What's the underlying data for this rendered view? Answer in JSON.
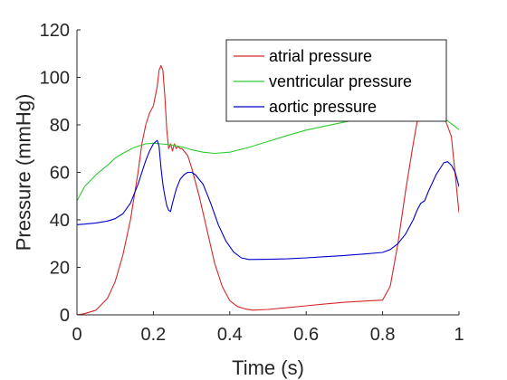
{
  "chart_data": {
    "type": "line",
    "xlabel": "Time (s)",
    "ylabel": "Pressure (mmHg)",
    "xlim": [
      0,
      1
    ],
    "ylim": [
      0,
      120
    ],
    "xticks": [
      0,
      0.2,
      0.4,
      0.6,
      0.8,
      1
    ],
    "xtick_labels": [
      "0",
      "0.2",
      "0.4",
      "0.6",
      "0.8",
      "1"
    ],
    "yticks": [
      0,
      20,
      40,
      60,
      80,
      100,
      120
    ],
    "ytick_labels": [
      "0",
      "20",
      "40",
      "60",
      "80",
      "100",
      "120"
    ],
    "grid": false,
    "legend_position": "top-right",
    "series": [
      {
        "name": "atrial pressure",
        "color": "#d62728",
        "x": [
          0,
          0.02,
          0.05,
          0.08,
          0.1,
          0.12,
          0.14,
          0.16,
          0.17,
          0.18,
          0.19,
          0.2,
          0.21,
          0.215,
          0.22,
          0.225,
          0.23,
          0.235,
          0.24,
          0.245,
          0.25,
          0.255,
          0.26,
          0.265,
          0.27,
          0.275,
          0.28,
          0.29,
          0.3,
          0.32,
          0.34,
          0.36,
          0.38,
          0.4,
          0.42,
          0.44,
          0.46,
          0.5,
          0.55,
          0.6,
          0.65,
          0.7,
          0.75,
          0.8,
          0.82,
          0.84,
          0.86,
          0.88,
          0.9,
          0.93,
          0.96,
          0.98,
          1.0
        ],
        "y": [
          0,
          0.5,
          2,
          7,
          14,
          25,
          40,
          60,
          72,
          80,
          85,
          88,
          96,
          103,
          105,
          103,
          92,
          78,
          70,
          72,
          69,
          72,
          70,
          71,
          70,
          70,
          69,
          67,
          62,
          50,
          36,
          22,
          12,
          6,
          3.5,
          2.5,
          2,
          2.3,
          3,
          3.8,
          4.6,
          5.3,
          5.8,
          6.2,
          12,
          30,
          52,
          72,
          90,
          86,
          84,
          75,
          43
        ]
      },
      {
        "name": "ventricular pressure",
        "color": "#2ecc2e",
        "x": [
          0,
          0.02,
          0.05,
          0.08,
          0.1,
          0.12,
          0.15,
          0.18,
          0.2,
          0.22,
          0.25,
          0.28,
          0.3,
          0.33,
          0.36,
          0.4,
          0.45,
          0.5,
          0.55,
          0.6,
          0.65,
          0.7,
          0.75,
          0.8,
          0.85,
          0.88,
          0.9,
          0.95,
          0.98,
          1.0
        ],
        "y": [
          48,
          54,
          59,
          63,
          66,
          68,
          70.5,
          72,
          72.3,
          72,
          71.5,
          70.5,
          69.5,
          68.5,
          68,
          68.5,
          70.5,
          73,
          75.5,
          77.8,
          79.5,
          81.2,
          82.8,
          84.3,
          85.5,
          86,
          85.8,
          84,
          80.5,
          78
        ]
      },
      {
        "name": "aortic pressure",
        "color": "#0000cc",
        "x": [
          0,
          0.02,
          0.05,
          0.08,
          0.1,
          0.12,
          0.14,
          0.16,
          0.17,
          0.18,
          0.19,
          0.2,
          0.21,
          0.215,
          0.22,
          0.225,
          0.23,
          0.235,
          0.24,
          0.245,
          0.25,
          0.26,
          0.27,
          0.28,
          0.29,
          0.3,
          0.31,
          0.33,
          0.35,
          0.37,
          0.39,
          0.41,
          0.43,
          0.45,
          0.5,
          0.55,
          0.6,
          0.65,
          0.7,
          0.75,
          0.8,
          0.82,
          0.84,
          0.86,
          0.88,
          0.89,
          0.9,
          0.91,
          0.92,
          0.94,
          0.96,
          0.97,
          0.98,
          0.99,
          1.0
        ],
        "y": [
          38,
          38.2,
          38.7,
          39.5,
          40.5,
          42.5,
          47,
          55,
          60,
          65,
          69,
          72,
          73.5,
          71,
          62,
          55,
          50,
          46,
          44,
          43.5,
          47,
          53,
          57,
          59,
          60,
          60,
          59,
          55,
          47,
          38,
          31,
          26.5,
          24,
          23.3,
          23.4,
          23.6,
          24,
          24.5,
          25,
          25.6,
          26.3,
          27.5,
          30,
          34,
          40,
          44,
          47,
          48,
          52,
          59,
          64,
          64.5,
          63,
          60,
          54
        ]
      }
    ]
  }
}
